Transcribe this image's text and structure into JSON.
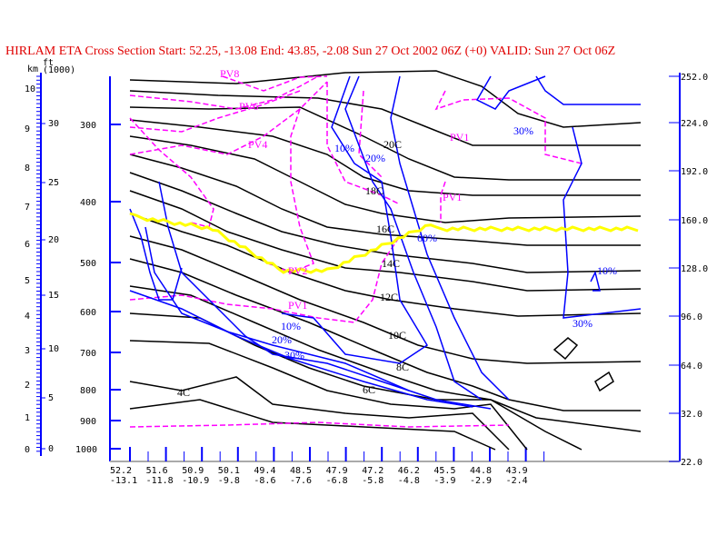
{
  "chart_data": {
    "type": "cross-section contour",
    "title": "HIRLAM ETA Cross Section Start:  52.25,  -13.08 End:  43.85,  -2.08 Sun 27 Oct 2002 06Z  (+0) VALID: Sun 27 Oct 06Z",
    "km_axis": {
      "label": "km",
      "ticks": [
        "10",
        "9",
        "8",
        "7",
        "6",
        "5",
        "4",
        "3",
        "2",
        "1",
        "0"
      ]
    },
    "ft_axis": {
      "label": "ft",
      "sublabel": "(1000)",
      "ticks": [
        "30",
        "25",
        "20",
        "15",
        "10",
        "5",
        "0"
      ]
    },
    "pressure_axis": {
      "ticks": [
        "300",
        "400",
        "500",
        "600",
        "700",
        "800",
        "900",
        "1000"
      ]
    },
    "right_axis": {
      "ticks": [
        "252.0",
        "224.0",
        "192.0",
        "160.0",
        "128.0",
        "96.0",
        "64.0",
        "32.0",
        "22.0"
      ]
    },
    "x_axis": {
      "lat": [
        "52.2",
        "51.6",
        "50.9",
        "50.1",
        "49.4",
        "48.5",
        "47.9",
        "47.2",
        "46.2",
        "45.5",
        "44.8",
        "43.9"
      ],
      "lon": [
        "-13.1",
        "-11.8",
        "-10.9",
        "-9.8",
        "-8.6",
        "-7.6",
        "-6.8",
        "-5.8",
        "-4.8",
        "-3.9",
        "-2.9",
        "-2.4"
      ]
    },
    "isotherm_labels": [
      "20C",
      "18C",
      "16C",
      "14C",
      "12C",
      "10C",
      "8C",
      "6C",
      "4C"
    ],
    "pv_labels": [
      "PV8",
      "PV6",
      "PV4",
      "PV1",
      "PV1",
      "PV2",
      "PV1"
    ],
    "rh_labels": [
      "10%",
      "20%",
      "60%",
      "30%",
      "10%",
      "30%",
      "10%",
      "20%",
      "30%"
    ],
    "colors": {
      "title": "#e00000",
      "isotherm": "#000000",
      "pv": "#ff00ff",
      "rh": "#0000ff",
      "axis": "#0000ff",
      "yellow": "#ffff00"
    }
  }
}
